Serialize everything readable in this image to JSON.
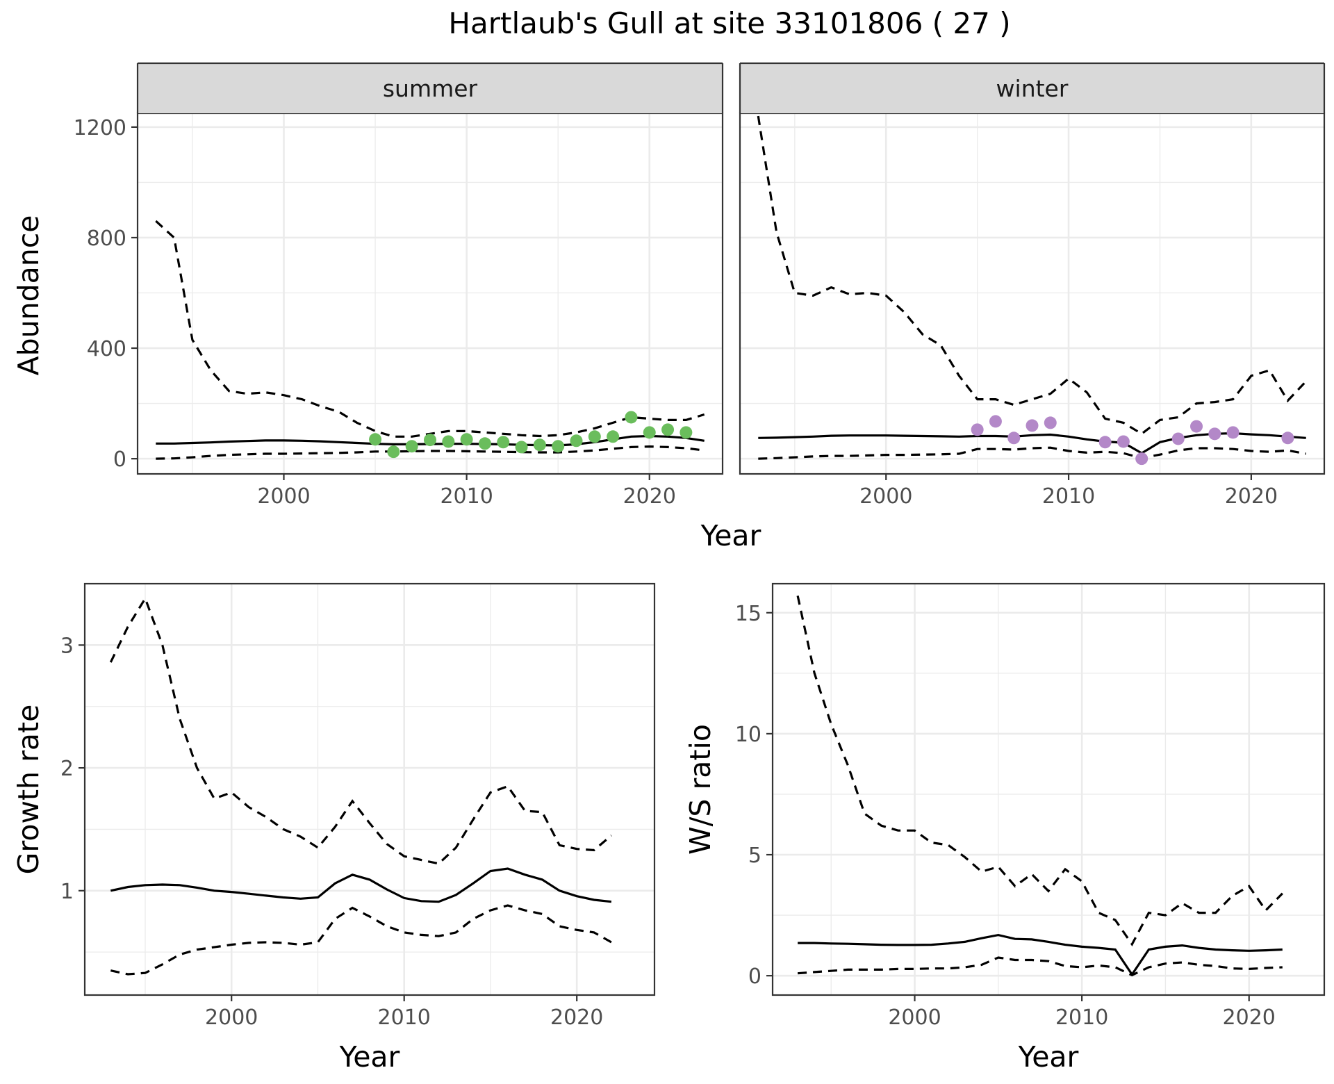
{
  "figure": {
    "title": "Hartlaub's Gull at site 33101806 ( 27 )"
  },
  "chart_data": [
    {
      "id": "abundance",
      "type": "line",
      "facets": [
        "summer",
        "winter"
      ],
      "xlabel": "Year",
      "ylabel": "Abundance",
      "xlim": [
        1992,
        2024
      ],
      "ylim": [
        -55,
        1250
      ],
      "x_ticks": [
        2000,
        2010,
        2020
      ],
      "y_ticks": [
        0,
        400,
        800,
        1200
      ],
      "grid": true,
      "panels": [
        {
          "facet": "summer",
          "point_color": "#6ABD5C",
          "fit": {
            "x": [
              1993,
              1994,
              1995,
              1996,
              1997,
              1998,
              1999,
              2000,
              2001,
              2002,
              2003,
              2004,
              2005,
              2006,
              2007,
              2008,
              2009,
              2010,
              2011,
              2012,
              2013,
              2014,
              2015,
              2016,
              2017,
              2018,
              2019,
              2020,
              2021,
              2022,
              2023
            ],
            "mean": [
              55,
              55,
              57,
              59,
              62,
              64,
              66,
              66,
              65,
              63,
              60,
              57,
              54,
              52,
              52,
              53,
              54,
              54,
              53,
              52,
              50,
              49,
              48,
              52,
              60,
              70,
              80,
              82,
              80,
              75,
              65
            ],
            "upper": [
              860,
              800,
              430,
              320,
              245,
              235,
              240,
              230,
              215,
              190,
              170,
              130,
              100,
              80,
              80,
              90,
              100,
              100,
              95,
              90,
              85,
              82,
              85,
              95,
              110,
              130,
              150,
              145,
              140,
              140,
              160
            ],
            "lower": [
              0,
              1,
              5,
              10,
              14,
              16,
              18,
              18,
              19,
              20,
              21,
              23,
              26,
              26,
              27,
              28,
              28,
              27,
              26,
              25,
              24,
              23,
              23,
              26,
              30,
              36,
              42,
              44,
              42,
              38,
              30
            ]
          },
          "observed": {
            "x": [
              2005,
              2006,
              2007,
              2008,
              2009,
              2010,
              2011,
              2012,
              2013,
              2014,
              2015,
              2016,
              2017,
              2018,
              2019,
              2020,
              2021,
              2022
            ],
            "y": [
              70,
              25,
              45,
              68,
              62,
              70,
              55,
              60,
              42,
              50,
              45,
              65,
              80,
              80,
              150,
              95,
              105,
              95
            ]
          }
        },
        {
          "facet": "winter",
          "point_color": "#B388C8",
          "fit": {
            "x": [
              1993,
              1994,
              1995,
              1996,
              1997,
              1998,
              1999,
              2000,
              2001,
              2002,
              2003,
              2004,
              2005,
              2006,
              2007,
              2008,
              2009,
              2010,
              2011,
              2012,
              2013,
              2014,
              2015,
              2016,
              2017,
              2018,
              2019,
              2020,
              2021,
              2022,
              2023
            ],
            "mean": [
              75,
              76,
              78,
              80,
              83,
              84,
              84,
              84,
              83,
              82,
              81,
              80,
              82,
              82,
              80,
              85,
              87,
              80,
              70,
              62,
              58,
              20,
              60,
              75,
              85,
              90,
              92,
              88,
              85,
              80,
              75
            ],
            "upper": [
              1240,
              820,
              600,
              590,
              620,
              595,
              600,
              590,
              530,
              450,
              410,
              300,
              215,
              215,
              195,
              215,
              235,
              290,
              240,
              145,
              130,
              90,
              140,
              150,
              200,
              205,
              215,
              300,
              320,
              210,
              280
            ],
            "lower": [
              0,
              2,
              5,
              8,
              10,
              10,
              12,
              14,
              14,
              15,
              16,
              18,
              35,
              35,
              33,
              38,
              40,
              28,
              22,
              25,
              20,
              2,
              15,
              30,
              38,
              38,
              35,
              28,
              25,
              30,
              18
            ]
          },
          "observed": {
            "x": [
              2005,
              2006,
              2007,
              2008,
              2009,
              2012,
              2013,
              2014,
              2016,
              2017,
              2018,
              2019,
              2022
            ],
            "y": [
              105,
              135,
              75,
              120,
              130,
              60,
              62,
              0,
              72,
              117,
              90,
              95,
              75
            ]
          }
        }
      ]
    },
    {
      "id": "growth",
      "type": "line",
      "xlabel": "Year",
      "ylabel": "Growth rate",
      "xlim": [
        1991.5,
        2024.5
      ],
      "ylim": [
        0.15,
        3.5
      ],
      "x_ticks": [
        2000,
        2010,
        2020
      ],
      "y_ticks": [
        1,
        2,
        3
      ],
      "grid": true,
      "x": [
        1993,
        1994,
        1995,
        1996,
        1997,
        1998,
        1999,
        2000,
        2001,
        2002,
        2003,
        2004,
        2005,
        2006,
        2007,
        2008,
        2009,
        2010,
        2011,
        2012,
        2013,
        2014,
        2015,
        2016,
        2017,
        2018,
        2019,
        2020,
        2021,
        2022
      ],
      "mean": [
        1.0,
        1.03,
        1.045,
        1.05,
        1.045,
        1.025,
        1.0,
        0.99,
        0.975,
        0.96,
        0.945,
        0.935,
        0.945,
        1.06,
        1.13,
        1.09,
        1.01,
        0.94,
        0.915,
        0.91,
        0.965,
        1.06,
        1.16,
        1.18,
        1.13,
        1.09,
        1.0,
        0.955,
        0.925,
        0.91
      ],
      "upper": [
        2.86,
        3.15,
        3.38,
        3.0,
        2.4,
        2.0,
        1.75,
        1.8,
        1.68,
        1.6,
        1.5,
        1.44,
        1.35,
        1.52,
        1.73,
        1.55,
        1.38,
        1.28,
        1.25,
        1.22,
        1.35,
        1.58,
        1.8,
        1.85,
        1.65,
        1.64,
        1.37,
        1.34,
        1.33,
        1.45
      ],
      "lower": [
        0.35,
        0.32,
        0.33,
        0.4,
        0.48,
        0.52,
        0.54,
        0.56,
        0.575,
        0.58,
        0.575,
        0.56,
        0.58,
        0.77,
        0.86,
        0.79,
        0.71,
        0.66,
        0.64,
        0.63,
        0.66,
        0.77,
        0.84,
        0.88,
        0.84,
        0.81,
        0.71,
        0.68,
        0.66,
        0.58
      ]
    },
    {
      "id": "ws",
      "type": "line",
      "xlabel": "Year",
      "ylabel": "W/S ratio",
      "xlim": [
        1991.5,
        2024.5
      ],
      "ylim": [
        -0.8,
        16.2
      ],
      "x_ticks": [
        2000,
        2010,
        2020
      ],
      "y_ticks": [
        0,
        5,
        10,
        15
      ],
      "grid": true,
      "x": [
        1993,
        1994,
        1995,
        1996,
        1997,
        1998,
        1999,
        2000,
        2001,
        2002,
        2003,
        2004,
        2005,
        2006,
        2007,
        2008,
        2009,
        2010,
        2011,
        2012,
        2013,
        2014,
        2015,
        2016,
        2017,
        2018,
        2019,
        2020,
        2021,
        2022
      ],
      "mean": [
        1.35,
        1.35,
        1.33,
        1.32,
        1.3,
        1.28,
        1.27,
        1.27,
        1.28,
        1.33,
        1.4,
        1.55,
        1.68,
        1.52,
        1.5,
        1.4,
        1.28,
        1.2,
        1.15,
        1.08,
        0.05,
        1.08,
        1.2,
        1.25,
        1.15,
        1.08,
        1.05,
        1.03,
        1.05,
        1.08
      ],
      "upper": [
        15.7,
        12.5,
        10.4,
        8.7,
        6.7,
        6.2,
        6.0,
        6.0,
        5.5,
        5.4,
        4.9,
        4.3,
        4.5,
        3.7,
        4.2,
        3.5,
        4.4,
        3.9,
        2.6,
        2.3,
        1.3,
        2.6,
        2.5,
        3.0,
        2.6,
        2.6,
        3.3,
        3.7,
        2.7,
        3.4
      ],
      "lower": [
        0.1,
        0.15,
        0.2,
        0.25,
        0.25,
        0.25,
        0.28,
        0.28,
        0.3,
        0.3,
        0.35,
        0.45,
        0.75,
        0.65,
        0.65,
        0.6,
        0.4,
        0.35,
        0.42,
        0.35,
        0.02,
        0.35,
        0.5,
        0.55,
        0.45,
        0.4,
        0.3,
        0.28,
        0.32,
        0.35
      ]
    }
  ]
}
